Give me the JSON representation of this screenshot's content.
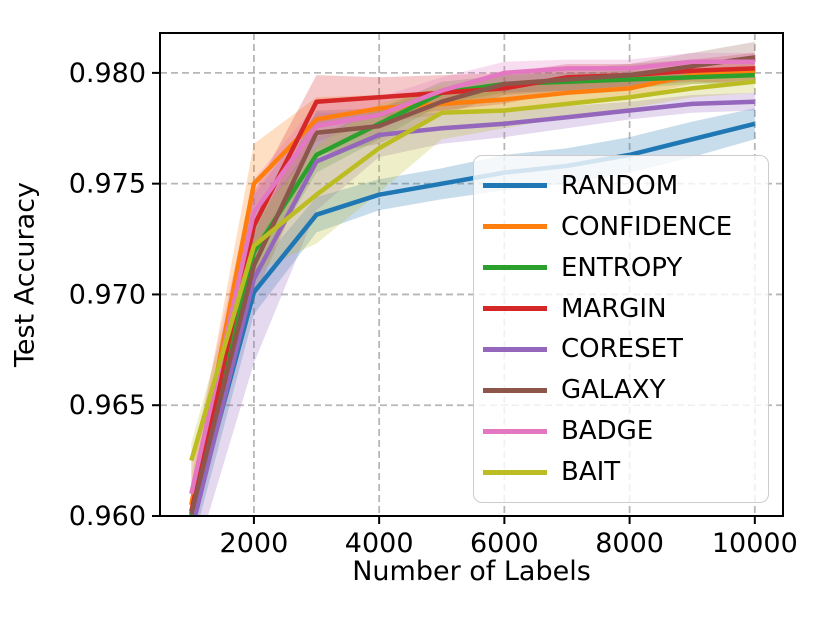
{
  "chart_data": {
    "type": "line",
    "title": "",
    "xlabel": "Number of Labels",
    "ylabel": "Test Accuracy",
    "x": [
      1000,
      2000,
      3000,
      4000,
      5000,
      6000,
      7000,
      8000,
      9000,
      10000
    ],
    "xlim": [
      500,
      10450
    ],
    "ylim": [
      0.96,
      0.9818
    ],
    "xticks": [
      2000,
      4000,
      6000,
      8000,
      10000
    ],
    "xtick_labels": [
      "2000",
      "4000",
      "6000",
      "8000",
      "10000"
    ],
    "yticks": [
      0.96,
      0.965,
      0.97,
      0.975,
      0.98
    ],
    "ytick_labels": [
      "0.960",
      "0.965",
      "0.970",
      "0.975",
      "0.980"
    ],
    "grid": true,
    "grid_style": "dashed",
    "legend_position": "center-right",
    "band_opacity": 0.25,
    "series": [
      {
        "name": "RANDOM",
        "color": "#1f77b4",
        "values": [
          0.9597,
          0.9701,
          0.9736,
          0.9745,
          0.975,
          0.9755,
          0.9758,
          0.9763,
          0.977,
          0.9777
        ],
        "band": [
          0.0012,
          0.001,
          0.0008,
          0.0007,
          0.0007,
          0.0008,
          0.0008,
          0.0008,
          0.0008,
          0.0007
        ]
      },
      {
        "name": "CONFIDENCE",
        "color": "#ff7f0e",
        "values": [
          0.9605,
          0.975,
          0.9779,
          0.9784,
          0.9786,
          0.9788,
          0.9791,
          0.9793,
          0.9799,
          0.9801
        ],
        "band": [
          0.0012,
          0.0018,
          0.001,
          0.0006,
          0.0005,
          0.0005,
          0.0005,
          0.0004,
          0.0004,
          0.0004
        ]
      },
      {
        "name": "ENTROPY",
        "color": "#2ca02c",
        "values": [
          0.96,
          0.9719,
          0.9763,
          0.9777,
          0.9791,
          0.9795,
          0.9796,
          0.9797,
          0.9798,
          0.9799
        ],
        "band": [
          0.001,
          0.0012,
          0.0008,
          0.0007,
          0.0005,
          0.0004,
          0.0004,
          0.0004,
          0.0003,
          0.0004
        ]
      },
      {
        "name": "MARGIN",
        "color": "#d62728",
        "values": [
          0.9602,
          0.9731,
          0.9787,
          0.9789,
          0.9791,
          0.9793,
          0.9798,
          0.9799,
          0.9801,
          0.9802
        ],
        "band": [
          0.001,
          0.0015,
          0.0012,
          0.0009,
          0.0008,
          0.0007,
          0.0006,
          0.0005,
          0.0005,
          0.0007
        ]
      },
      {
        "name": "CORESET",
        "color": "#9467bd",
        "values": [
          0.9593,
          0.9707,
          0.976,
          0.9772,
          0.9775,
          0.9777,
          0.978,
          0.9783,
          0.9786,
          0.9787
        ],
        "band": [
          0.0018,
          0.0038,
          0.0022,
          0.001,
          0.0007,
          0.0006,
          0.0005,
          0.0004,
          0.0004,
          0.0004
        ]
      },
      {
        "name": "GALAXY",
        "color": "#8c564b",
        "values": [
          0.9601,
          0.9713,
          0.9773,
          0.9776,
          0.9787,
          0.9795,
          0.9797,
          0.9799,
          0.9803,
          0.9807
        ],
        "band": [
          0.001,
          0.0015,
          0.001,
          0.0008,
          0.0006,
          0.0005,
          0.0005,
          0.0005,
          0.0006,
          0.0007
        ]
      },
      {
        "name": "BADGE",
        "color": "#e377c2",
        "values": [
          0.961,
          0.9737,
          0.9776,
          0.9781,
          0.9792,
          0.98,
          0.9802,
          0.9802,
          0.9805,
          0.9805
        ],
        "band": [
          0.0014,
          0.0015,
          0.001,
          0.0008,
          0.0006,
          0.0005,
          0.0004,
          0.0004,
          0.0004,
          0.0004
        ]
      },
      {
        "name": "BAIT",
        "color": "#bcbd22",
        "values": [
          0.9625,
          0.9722,
          0.9745,
          0.9766,
          0.9782,
          0.9783,
          0.9786,
          0.9789,
          0.9793,
          0.9796
        ],
        "band": [
          0.0008,
          0.0012,
          0.0022,
          0.002,
          0.0012,
          0.0008,
          0.0006,
          0.0005,
          0.0004,
          0.0005
        ]
      }
    ],
    "style": {
      "spine_color": "#000000",
      "grid_color": "#b0b0b0",
      "tick_color": "#000000",
      "line_width": 4.5
    }
  }
}
